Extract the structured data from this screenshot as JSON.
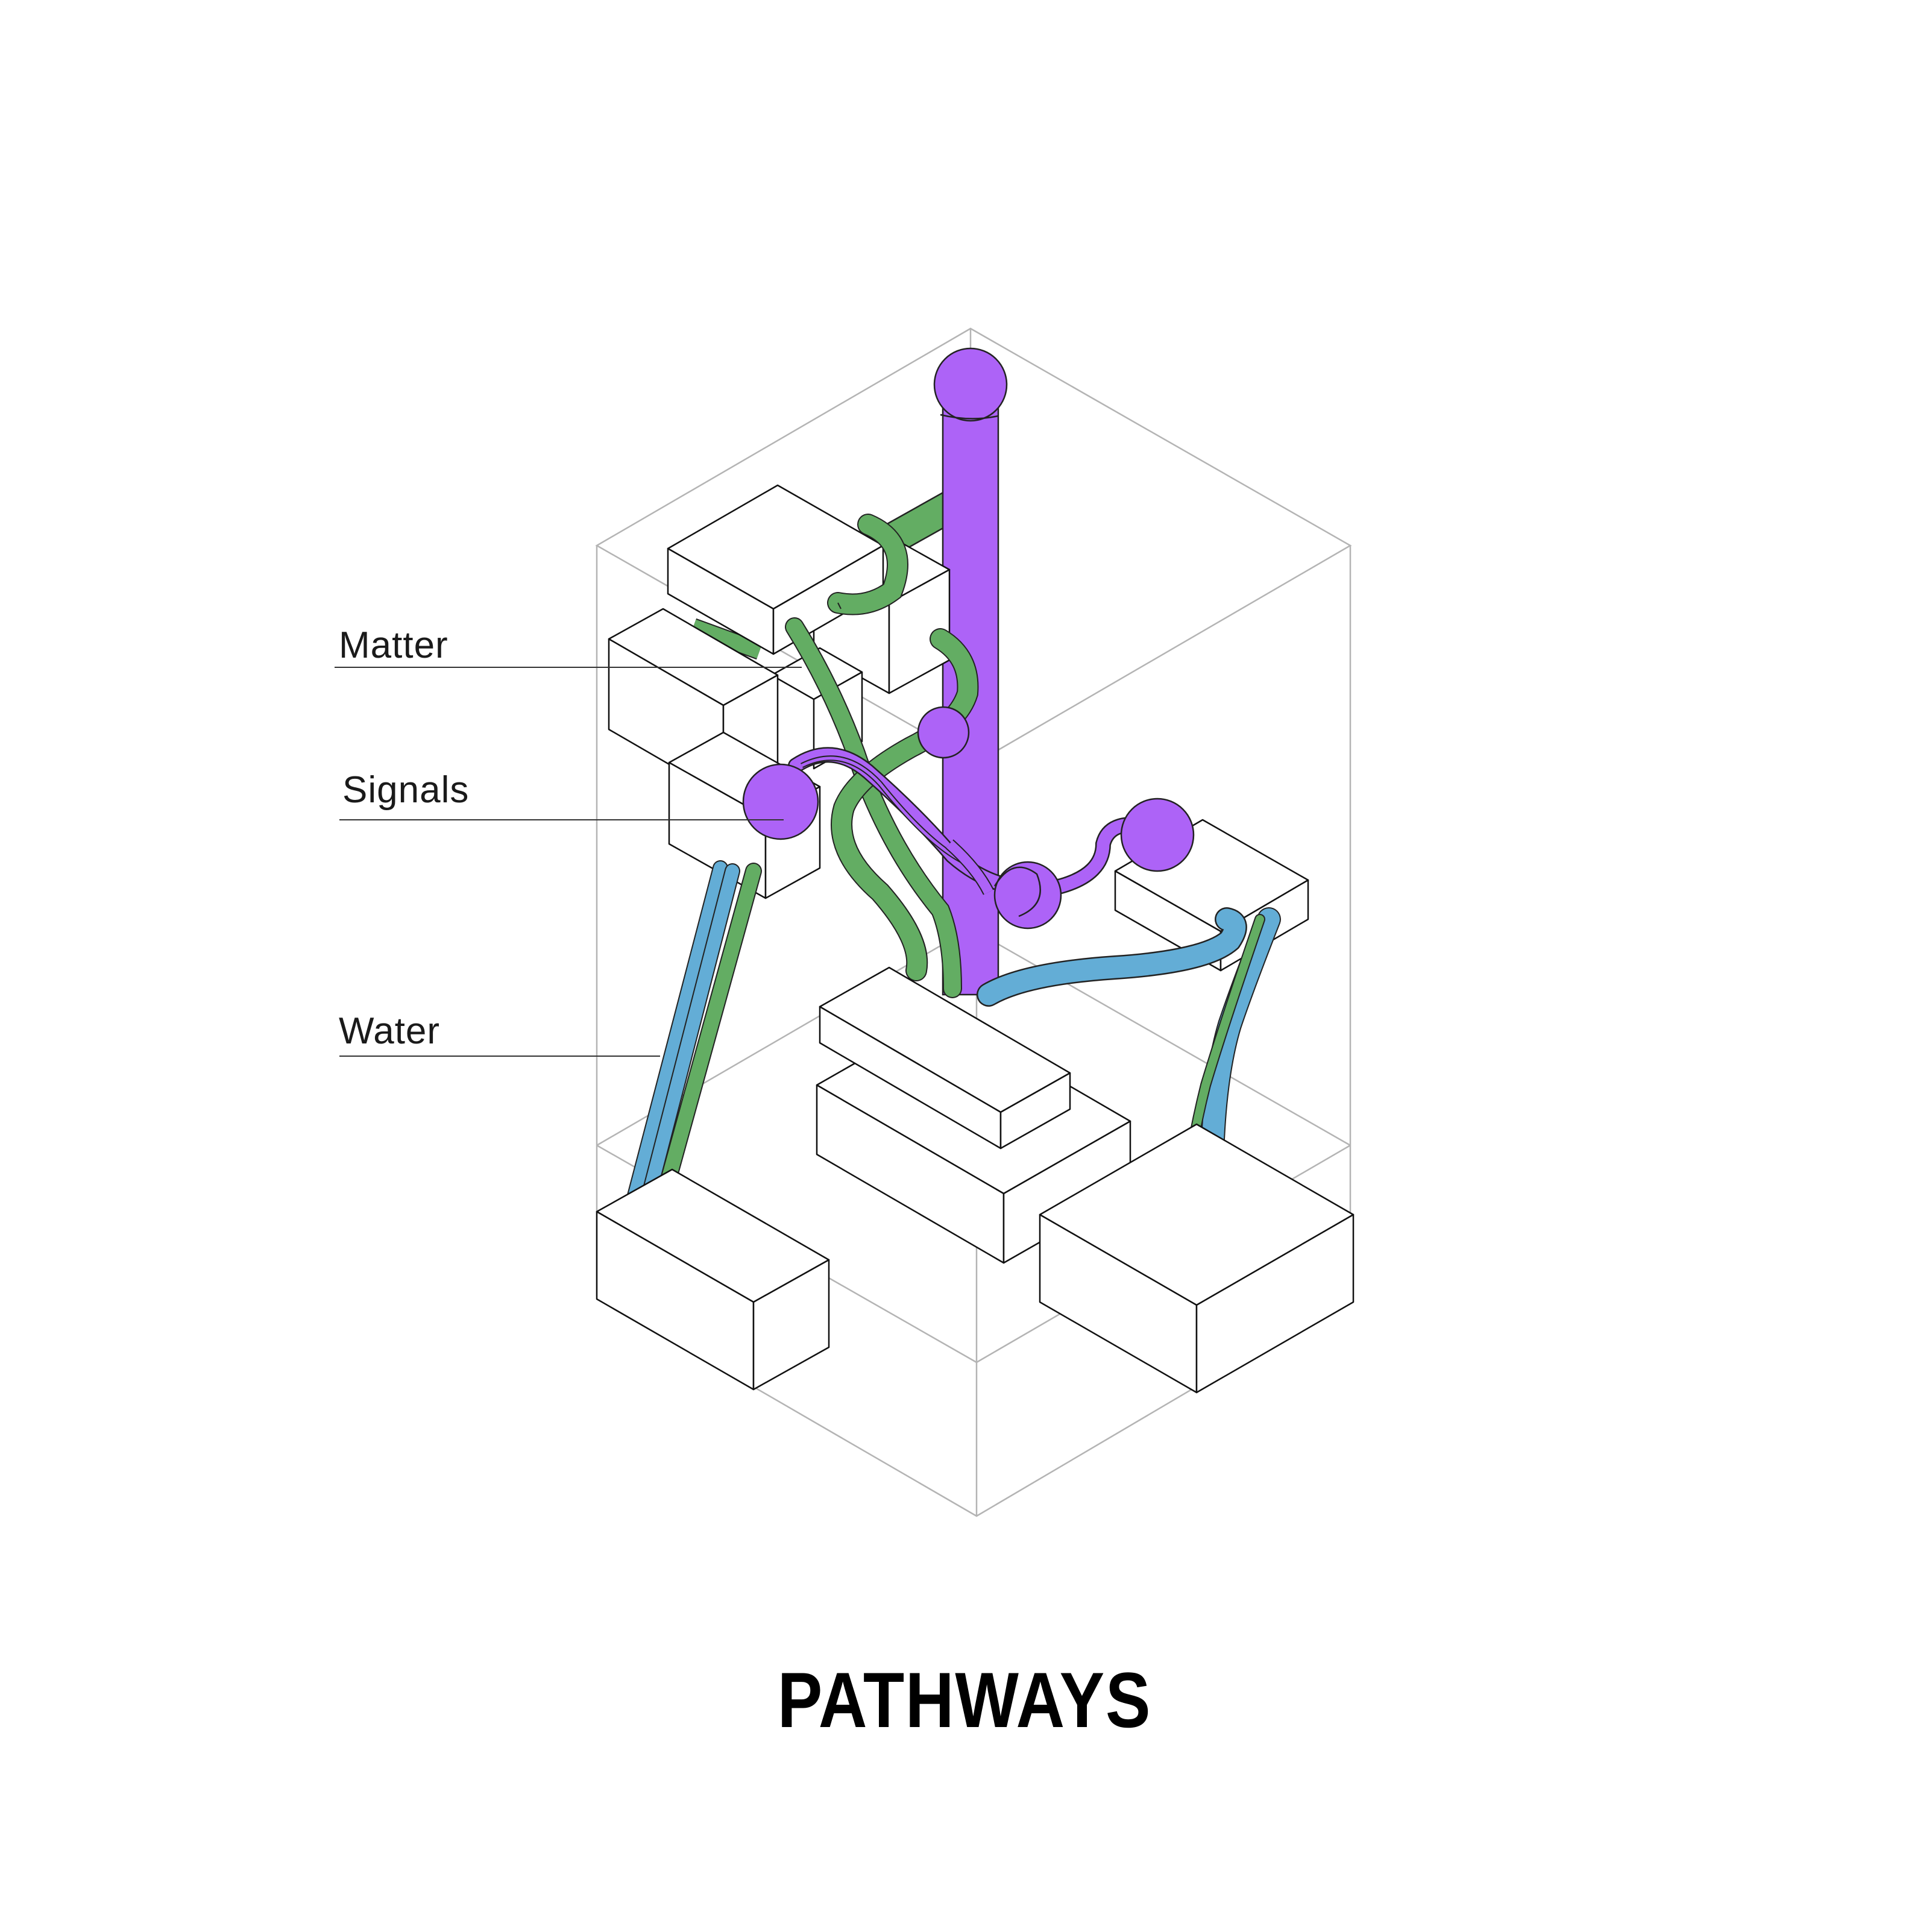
{
  "diagram": {
    "title": "PATHWAYS",
    "legend": [
      {
        "key": "matter",
        "label": "Matter",
        "color": "#63ad63"
      },
      {
        "key": "signals",
        "label": "Signals",
        "color": "#ad63f7"
      },
      {
        "key": "water",
        "label": "Water",
        "color": "#63add6"
      }
    ]
  }
}
